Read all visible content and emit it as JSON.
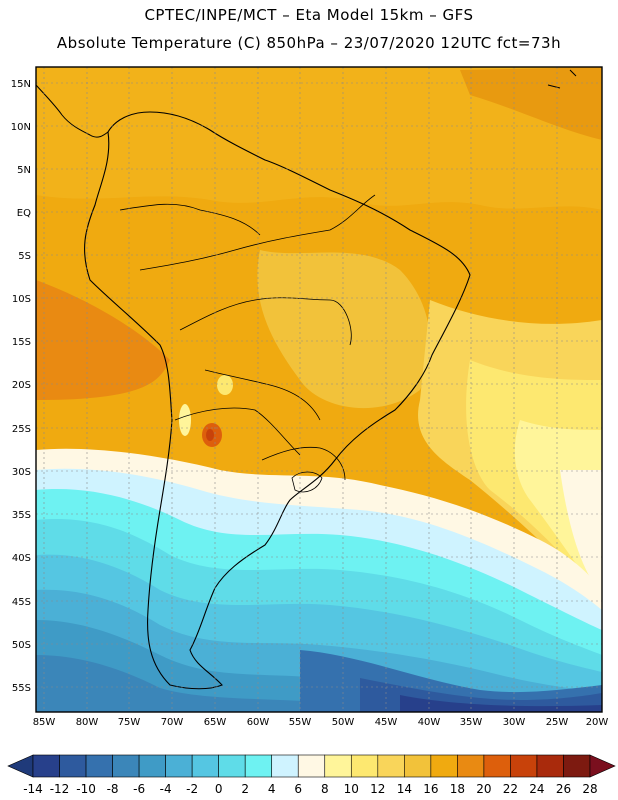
{
  "header": {
    "line1": "CPTEC/INPE/MCT –  Eta Model 15km – GFS",
    "line2": "Absolute Temperature (C) 850hPa – 23/07/2020 12UTC fct=73h"
  },
  "axes": {
    "lat_labels": [
      "15N",
      "10N",
      "5N",
      "EQ",
      "5S",
      "10S",
      "15S",
      "20S",
      "25S",
      "30S",
      "35S",
      "40S",
      "45S",
      "50S",
      "55S"
    ],
    "lon_labels": [
      "85W",
      "80W",
      "75W",
      "70W",
      "65W",
      "60W",
      "55W",
      "50W",
      "45W",
      "40W",
      "35W",
      "30W",
      "25W",
      "20W"
    ]
  },
  "colorbar": {
    "labels": [
      "-14",
      "-12",
      "-10",
      "-8",
      "-6",
      "-4",
      "-2",
      "0",
      "2",
      "4",
      "6",
      "8",
      "10",
      "12",
      "14",
      "16",
      "18",
      "20",
      "22",
      "24",
      "26",
      "28"
    ],
    "colors": [
      "#27408b",
      "#2e5a9e",
      "#3571ae",
      "#3b86b9",
      "#3f9bc6",
      "#4bb0d6",
      "#55c6e2",
      "#5fdce8",
      "#6ef2f2",
      "#cff3ff",
      "#fff8e4",
      "#fff59a",
      "#fde870",
      "#f9d55a",
      "#f2c23a",
      "#f0aa10",
      "#e98a12",
      "#dd5f0c",
      "#c8420a",
      "#a92a0c",
      "#7d1a10"
    ],
    "under_color": "#1f3a7a",
    "over_color": "#7a0f1e"
  }
}
